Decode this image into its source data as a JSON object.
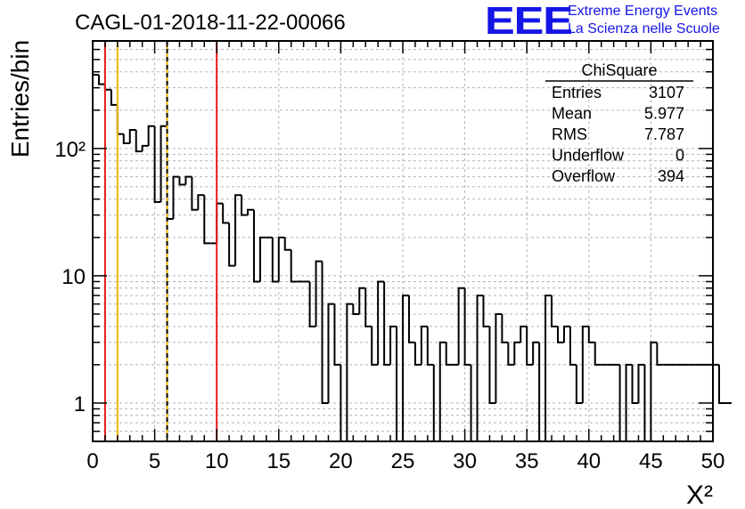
{
  "header": {
    "run_title": "CAGL-01-2018-11-22-00066",
    "logo_text": "EEE",
    "logo_line1": "Extreme Energy Events",
    "logo_line2": "La Scienza nelle Scuole",
    "brand_color": "#1515e6"
  },
  "stats_box": {
    "title": "ChiSquare",
    "rows": [
      {
        "label": "Entries",
        "value": "3107"
      },
      {
        "label": "Mean",
        "value": "5.977"
      },
      {
        "label": "RMS",
        "value": "7.787"
      },
      {
        "label": "Underflow",
        "value": "0"
      },
      {
        "label": "Overflow",
        "value": "394"
      }
    ]
  },
  "chart_data": {
    "type": "histogram",
    "xlabel": "X²",
    "ylabel": "Entries/bin",
    "xlim": [
      0,
      50
    ],
    "ylim": [
      0.5,
      700
    ],
    "yscale": "log",
    "grid": true,
    "bin_width": 0.5,
    "xticks": [
      "0",
      "5",
      "10",
      "15",
      "20",
      "25",
      "30",
      "35",
      "40",
      "45",
      "50"
    ],
    "yticks": [
      {
        "value": 1,
        "label": "1"
      },
      {
        "value": 10,
        "label": "10"
      },
      {
        "value": 100,
        "label": "10²"
      }
    ],
    "counts": [
      380,
      320,
      290,
      220,
      130,
      110,
      140,
      95,
      105,
      150,
      38,
      150,
      28,
      60,
      52,
      60,
      33,
      43,
      18,
      18,
      37,
      26,
      12,
      43,
      30,
      33,
      9,
      20,
      20,
      9,
      20,
      16,
      9,
      9,
      9,
      4,
      13,
      1,
      6,
      2,
      0.5,
      6,
      5,
      8,
      4,
      2,
      9,
      2,
      4,
      0.5,
      7,
      3,
      2,
      4,
      2,
      0.5,
      3,
      2,
      2,
      8,
      2,
      0.5,
      7,
      4,
      1,
      5,
      3,
      2,
      3,
      4,
      2,
      3,
      0.5,
      7,
      4,
      3,
      4,
      2,
      1,
      4,
      3,
      2,
      2,
      2,
      2,
      0.5,
      2,
      1,
      2,
      0.5,
      3,
      2,
      2,
      2,
      2,
      2,
      2,
      2,
      2,
      2,
      2,
      1,
      1
    ],
    "vertical_lines": [
      {
        "x": 1,
        "color": "#e61919",
        "style": "solid"
      },
      {
        "x": 2,
        "color": "#f0b400",
        "style": "solid"
      },
      {
        "x": 6,
        "color": "#f0b400",
        "style": "solid"
      },
      {
        "x": 6,
        "color": "#000000",
        "style": "dashed"
      },
      {
        "x": 10,
        "color": "#e61919",
        "style": "solid"
      }
    ]
  }
}
